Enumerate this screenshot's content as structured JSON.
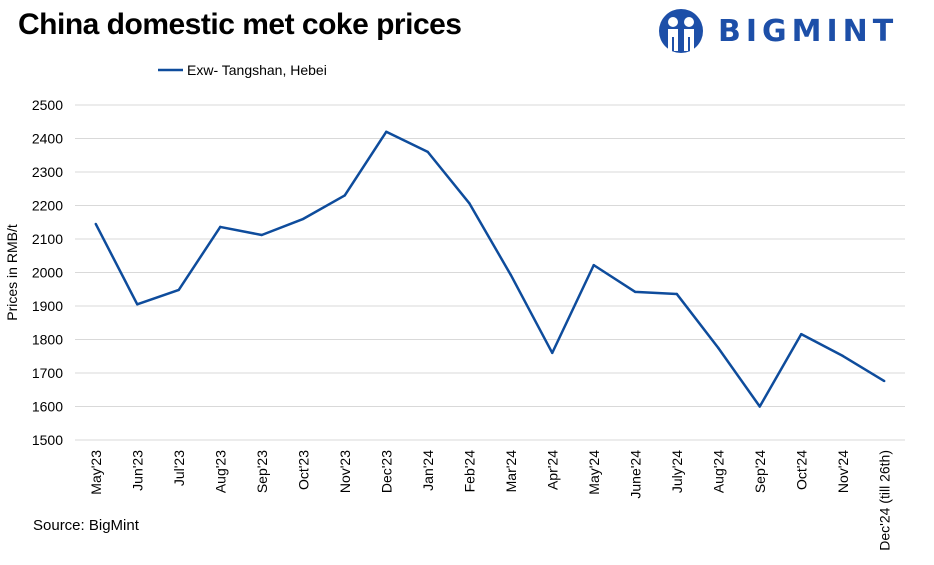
{
  "title": "China domestic met coke prices",
  "logo": {
    "text": "BIGMINT",
    "color": "#1d4fa8"
  },
  "source": "Source: BigMint",
  "chart_data": {
    "type": "line",
    "title": "China domestic met coke prices",
    "ylabel": "Prices in RMB/t",
    "xlabel": "",
    "ylim": [
      1500,
      2500
    ],
    "yticks": [
      1500,
      1600,
      1700,
      1800,
      1900,
      2000,
      2100,
      2200,
      2300,
      2400,
      2500
    ],
    "grid": true,
    "legend_position": "top",
    "categories": [
      "May'23",
      "Jun'23",
      "Jul'23",
      "Aug'23",
      "Sep'23",
      "Oct'23",
      "Nov'23",
      "Dec'23",
      "Jan'24",
      "Feb'24",
      "Mar'24",
      "Apr'24",
      "May'24",
      "June'24",
      "July'24",
      "Aug'24",
      "Sep'24",
      "Oct'24",
      "Nov'24",
      "Dec'24 (till 26th)"
    ],
    "series": [
      {
        "name": "Exw- Tangshan, Hebei",
        "color": "#0e4c9c",
        "values": [
          2145,
          1905,
          1948,
          2136,
          2112,
          2160,
          2230,
          2420,
          2360,
          2207,
          1993,
          1760,
          2022,
          1942,
          1936,
          1775,
          1600,
          1816,
          1751,
          1676
        ]
      }
    ]
  }
}
